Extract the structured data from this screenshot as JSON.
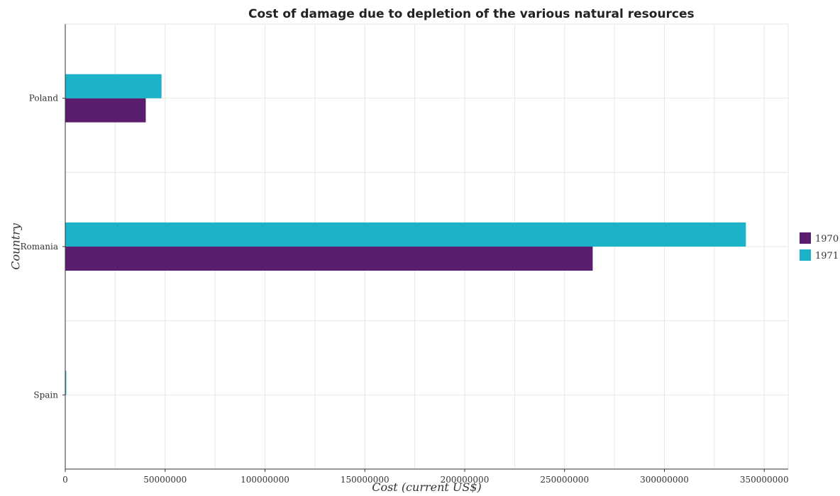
{
  "chart_data": {
    "type": "bar",
    "orientation": "horizontal",
    "title": "Cost of damage due to depletion of the various natural resources",
    "xlabel": "Cost (current US$)",
    "ylabel": "Country",
    "categories": [
      "Poland",
      "Romania",
      "Spain"
    ],
    "series": [
      {
        "name": "1970",
        "color": "#5b1e6e",
        "values": [
          40300000,
          264100000,
          0
        ]
      },
      {
        "name": "1971",
        "color": "#1cb3c8",
        "values": [
          48200000,
          340800000,
          500000
        ]
      }
    ],
    "xlim": [
      0,
      362000000
    ],
    "xticks": [
      0,
      50000000,
      100000000,
      150000000,
      200000000,
      250000000,
      300000000,
      350000000
    ],
    "xtick_labels": [
      "0",
      "50000000",
      "100000000",
      "150000000",
      "200000000",
      "250000000",
      "300000000",
      "350000000"
    ],
    "grid": true,
    "legend_position": "right"
  }
}
